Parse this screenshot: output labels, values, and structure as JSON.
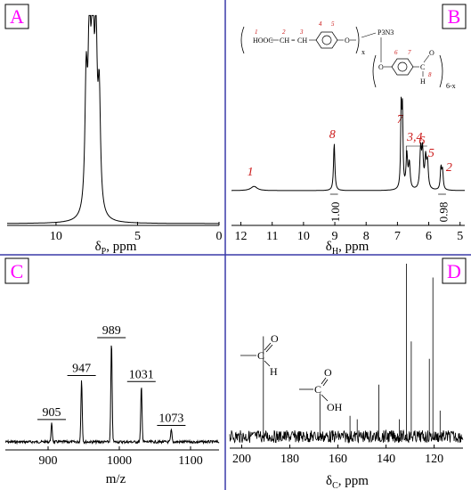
{
  "colors": {
    "divider": "#3a3aa8",
    "panel_label": "#ff00ff",
    "annotation": "#cc1a1a",
    "trace": "#000000"
  },
  "chart_data": [
    {
      "id": "A",
      "type": "line",
      "panel_label": "A",
      "xlabel": "δP, ppm",
      "xlabel_main": "δ",
      "xlabel_sub": "P",
      "xlabel_unit": ", ppm",
      "xlim": [
        13,
        0
      ],
      "x_reversed": true,
      "xticks": [
        10,
        5,
        0
      ],
      "xtick_labels": [
        "10",
        "5",
        "0"
      ],
      "series": [
        {
          "peaks": [
            {
              "x": 8.15,
              "height": 0.62,
              "width": 0.09
            },
            {
              "x": 7.95,
              "height": 0.86,
              "width": 0.09
            },
            {
              "x": 7.75,
              "height": 1.0,
              "width": 0.09
            },
            {
              "x": 7.55,
              "height": 0.78,
              "width": 0.09
            },
            {
              "x": 7.35,
              "height": 0.55,
              "width": 0.09
            }
          ]
        }
      ]
    },
    {
      "id": "B",
      "type": "line",
      "panel_label": "B",
      "xlabel": "δH, ppm",
      "xlabel_main": "δ",
      "xlabel_sub": "H",
      "xlabel_unit": ", ppm",
      "xlim": [
        12.3,
        4.85
      ],
      "x_reversed": true,
      "xticks": [
        12,
        11,
        10,
        9,
        8,
        7,
        6,
        5
      ],
      "xtick_labels": [
        "12",
        "11",
        "10",
        "9",
        "8",
        "7",
        "6",
        "5"
      ],
      "series": [
        {
          "peaks": [
            {
              "x": 11.58,
              "height": 0.05,
              "width": 0.12
            },
            {
              "x": 9.02,
              "height": 0.56,
              "width": 0.025
            },
            {
              "x": 6.88,
              "height": 0.95,
              "width": 0.02
            },
            {
              "x": 6.84,
              "height": 0.86,
              "width": 0.02
            },
            {
              "x": 6.7,
              "height": 0.4,
              "width": 0.03
            },
            {
              "x": 6.62,
              "height": 0.3,
              "width": 0.03
            },
            {
              "x": 6.26,
              "height": 0.45,
              "width": 0.03
            },
            {
              "x": 6.2,
              "height": 0.43,
              "width": 0.03
            },
            {
              "x": 6.1,
              "height": 0.35,
              "width": 0.03
            },
            {
              "x": 6.04,
              "height": 0.3,
              "width": 0.03
            },
            {
              "x": 5.61,
              "height": 0.26,
              "width": 0.025
            },
            {
              "x": 5.56,
              "height": 0.22,
              "width": 0.025
            }
          ]
        }
      ],
      "peak_labels": [
        {
          "text": "1",
          "x": 11.7
        },
        {
          "text": "8",
          "x": 9.08
        },
        {
          "text": "7",
          "x": 6.92
        },
        {
          "text": "3,4",
          "x": 6.45
        },
        {
          "text": "6",
          "x": 6.22
        },
        {
          "text": "5",
          "x": 5.92
        },
        {
          "text": "2",
          "x": 5.35
        }
      ],
      "integrals": [
        {
          "value": "1.00",
          "from": 9.15,
          "to": 8.9
        },
        {
          "value": "0.98",
          "from": 5.7,
          "to": 5.45
        }
      ],
      "structure": {
        "group_left": "HOOC",
        "ch1": "CH",
        "eq": "=",
        "ch2": "CH",
        "o1": "O",
        "phosphorus": "P3N3",
        "x_label": "x",
        "o2": "O",
        "aldehyde_c": "C",
        "aldehyde_o": "O",
        "aldehyde_h": "H",
        "count": "6-x",
        "num_1": "1",
        "num_2": "2",
        "num_3": "3",
        "num_4": "4",
        "num_5": "5",
        "num_6": "6",
        "num_7": "7",
        "num_8": "8"
      }
    },
    {
      "id": "C",
      "type": "bar",
      "panel_label": "C",
      "xlabel": "m/z",
      "xlim": [
        840,
        1140
      ],
      "xticks": [
        900,
        1000,
        1100
      ],
      "xtick_labels": [
        "900",
        "1000",
        "1100"
      ],
      "series": [
        {
          "peaks": [
            {
              "x": 905,
              "height": 0.18
            },
            {
              "x": 947,
              "height": 0.62
            },
            {
              "x": 989,
              "height": 1.0
            },
            {
              "x": 1031,
              "height": 0.56
            },
            {
              "x": 1073,
              "height": 0.12
            }
          ]
        }
      ],
      "peak_labels": [
        "905",
        "947",
        "989",
        "1031",
        "1073"
      ]
    },
    {
      "id": "D",
      "type": "line",
      "panel_label": "D",
      "xlabel": "δC, ppm",
      "xlabel_main": "δ",
      "xlabel_sub": "C",
      "xlabel_unit": ", ppm",
      "xlim": [
        205,
        108
      ],
      "x_reversed": true,
      "xticks": [
        200,
        180,
        160,
        140,
        120
      ],
      "xtick_labels": [
        "200",
        "180",
        "160",
        "140",
        "120"
      ],
      "series": [
        {
          "peaks": [
            {
              "x": 191.0,
              "height": 0.58
            },
            {
              "x": 167.5,
              "height": 0.25
            },
            {
              "x": 155.0,
              "height": 0.12
            },
            {
              "x": 152.0,
              "height": 0.1
            },
            {
              "x": 143.0,
              "height": 0.3
            },
            {
              "x": 134.5,
              "height": 0.1
            },
            {
              "x": 131.5,
              "height": 1.0
            },
            {
              "x": 129.5,
              "height": 0.55
            },
            {
              "x": 122.0,
              "height": 0.45
            },
            {
              "x": 120.5,
              "height": 0.92
            },
            {
              "x": 117.5,
              "height": 0.15
            }
          ]
        }
      ],
      "structure_aldehyde": {
        "c": "C",
        "o": "O",
        "h": "H"
      },
      "structure_acid": {
        "c": "C",
        "o": "O",
        "oh": "OH"
      }
    }
  ]
}
